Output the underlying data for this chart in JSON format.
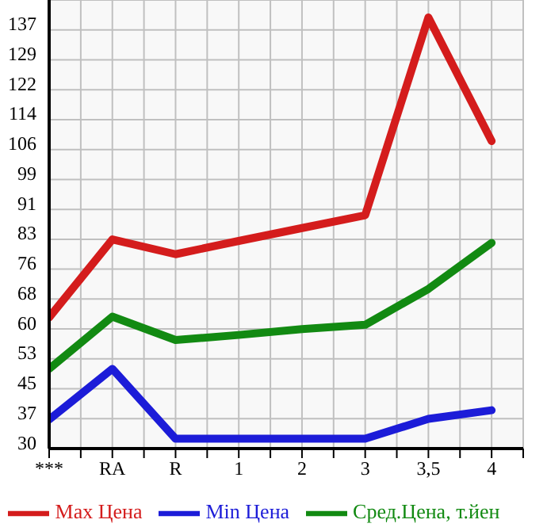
{
  "chart_data": {
    "type": "line",
    "categories": [
      "***",
      "RA",
      "R",
      "1",
      "2",
      "3",
      "3,5",
      "4"
    ],
    "series": [
      {
        "name": "Max Цена",
        "color": "#d41c1c",
        "values": [
          63.3,
          83.3,
          79.5,
          82.9,
          86.2,
          89.5,
          140.2,
          108.5
        ]
      },
      {
        "name": "Min Цена",
        "color": "#1c1cd8",
        "values": [
          37.1,
          50.1,
          32.2,
          32.2,
          32.2,
          32.2,
          37.3,
          39.5
        ]
      },
      {
        "name": "Сред.Цена, т.йен",
        "color": "#128a12",
        "values": [
          50.1,
          63.5,
          57.5,
          58.8,
          60.3,
          61.4,
          70.6,
          82.4
        ]
      }
    ],
    "ylim": [
      29.67,
      144.67
    ],
    "yticks": [
      {
        "value": 29.67,
        "label": "30"
      },
      {
        "value": 37.33,
        "label": "37"
      },
      {
        "value": 45,
        "label": "45"
      },
      {
        "value": 52.67,
        "label": "53"
      },
      {
        "value": 60.33,
        "label": "60"
      },
      {
        "value": 68,
        "label": "68"
      },
      {
        "value": 75.67,
        "label": "76"
      },
      {
        "value": 83.33,
        "label": "83"
      },
      {
        "value": 91,
        "label": "91"
      },
      {
        "value": 98.67,
        "label": "99"
      },
      {
        "value": 106.33,
        "label": "106"
      },
      {
        "value": 114,
        "label": "114"
      },
      {
        "value": 121.67,
        "label": "122"
      },
      {
        "value": 129.33,
        "label": "129"
      },
      {
        "value": 137,
        "label": "137"
      }
    ],
    "grid": true,
    "legend": "bottom",
    "marker": "none",
    "line_style": "solid"
  }
}
